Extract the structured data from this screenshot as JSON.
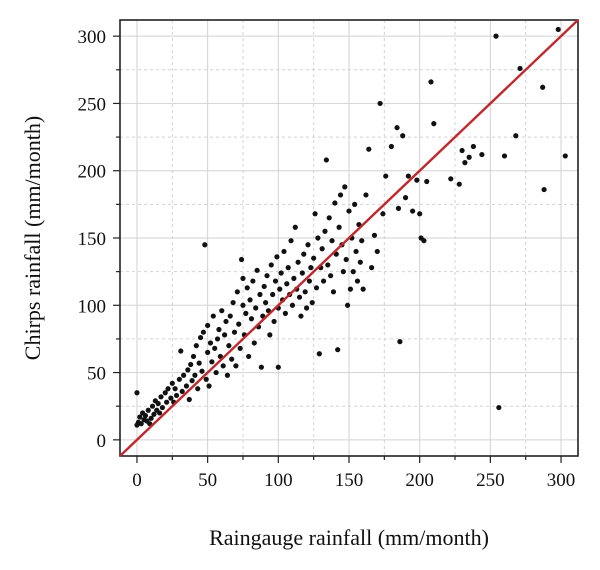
{
  "chart_data": {
    "type": "scatter",
    "title": "",
    "xlabel": "Raingauge rainfall (mm/month)",
    "ylabel": "Chirps rainfall (mm/month)",
    "xlim": [
      -12,
      312
    ],
    "ylim": [
      -12,
      312
    ],
    "xticks": [
      0,
      50,
      100,
      150,
      200,
      250,
      300
    ],
    "yticks": [
      0,
      50,
      100,
      150,
      200,
      250,
      300
    ],
    "grid": true,
    "point_color": "#111111",
    "line_color": "#c0282d",
    "fit_line": {
      "from": [
        -12,
        -12
      ],
      "to": [
        312,
        312
      ]
    },
    "points": [
      [
        0,
        35
      ],
      [
        0,
        11
      ],
      [
        1,
        13
      ],
      [
        2,
        17
      ],
      [
        3,
        12
      ],
      [
        4,
        20
      ],
      [
        5,
        15
      ],
      [
        6,
        18
      ],
      [
        7,
        14
      ],
      [
        8,
        22
      ],
      [
        9,
        12
      ],
      [
        10,
        16
      ],
      [
        11,
        25
      ],
      [
        12,
        19
      ],
      [
        13,
        29
      ],
      [
        14,
        22
      ],
      [
        15,
        27
      ],
      [
        16,
        20
      ],
      [
        17,
        32
      ],
      [
        18,
        24
      ],
      [
        20,
        35
      ],
      [
        21,
        28
      ],
      [
        22,
        38
      ],
      [
        24,
        31
      ],
      [
        25,
        42
      ],
      [
        26,
        28
      ],
      [
        27,
        38
      ],
      [
        28,
        33
      ],
      [
        30,
        45
      ],
      [
        31,
        66
      ],
      [
        32,
        36
      ],
      [
        33,
        48
      ],
      [
        35,
        40
      ],
      [
        36,
        52
      ],
      [
        37,
        30
      ],
      [
        38,
        56
      ],
      [
        39,
        44
      ],
      [
        40,
        62
      ],
      [
        41,
        48
      ],
      [
        42,
        70
      ],
      [
        43,
        38
      ],
      [
        44,
        57
      ],
      [
        45,
        76
      ],
      [
        46,
        51
      ],
      [
        47,
        80
      ],
      [
        48,
        145
      ],
      [
        49,
        45
      ],
      [
        50,
        65
      ],
      [
        50,
        85
      ],
      [
        51,
        40
      ],
      [
        52,
        72
      ],
      [
        53,
        58
      ],
      [
        54,
        92
      ],
      [
        55,
        68
      ],
      [
        56,
        50
      ],
      [
        57,
        75
      ],
      [
        58,
        82
      ],
      [
        59,
        62
      ],
      [
        60,
        96
      ],
      [
        61,
        55
      ],
      [
        62,
        78
      ],
      [
        63,
        88
      ],
      [
        64,
        48
      ],
      [
        65,
        70
      ],
      [
        66,
        92
      ],
      [
        67,
        60
      ],
      [
        68,
        102
      ],
      [
        69,
        80
      ],
      [
        70,
        55
      ],
      [
        71,
        110
      ],
      [
        72,
        86
      ],
      [
        73,
        68
      ],
      [
        74,
        134
      ],
      [
        75,
        100
      ],
      [
        75,
        120
      ],
      [
        76,
        78
      ],
      [
        77,
        94
      ],
      [
        78,
        113
      ],
      [
        79,
        62
      ],
      [
        80,
        104
      ],
      [
        81,
        90
      ],
      [
        82,
        118
      ],
      [
        83,
        72
      ],
      [
        84,
        98
      ],
      [
        85,
        126
      ],
      [
        86,
        84
      ],
      [
        87,
        108
      ],
      [
        88,
        54
      ],
      [
        89,
        92
      ],
      [
        90,
        114
      ],
      [
        91,
        102
      ],
      [
        92,
        122
      ],
      [
        93,
        96
      ],
      [
        94,
        78
      ],
      [
        95,
        130
      ],
      [
        96,
        108
      ],
      [
        97,
        88
      ],
      [
        98,
        118
      ],
      [
        99,
        136
      ],
      [
        100,
        54
      ],
      [
        100,
        98
      ],
      [
        101,
        112
      ],
      [
        102,
        124
      ],
      [
        103,
        104
      ],
      [
        104,
        140
      ],
      [
        105,
        94
      ],
      [
        106,
        116
      ],
      [
        107,
        128
      ],
      [
        108,
        108
      ],
      [
        109,
        148
      ],
      [
        110,
        100
      ],
      [
        111,
        120
      ],
      [
        112,
        158
      ],
      [
        113,
        112
      ],
      [
        114,
        132
      ],
      [
        115,
        106
      ],
      [
        116,
        92
      ],
      [
        117,
        124
      ],
      [
        118,
        138
      ],
      [
        119,
        110
      ],
      [
        120,
        98
      ],
      [
        121,
        145
      ],
      [
        122,
        118
      ],
      [
        123,
        128
      ],
      [
        124,
        102
      ],
      [
        125,
        135
      ],
      [
        126,
        168
      ],
      [
        127,
        113
      ],
      [
        128,
        150
      ],
      [
        129,
        64
      ],
      [
        130,
        128
      ],
      [
        131,
        142
      ],
      [
        132,
        118
      ],
      [
        133,
        155
      ],
      [
        134,
        208
      ],
      [
        135,
        130
      ],
      [
        136,
        165
      ],
      [
        137,
        122
      ],
      [
        138,
        148
      ],
      [
        139,
        110
      ],
      [
        140,
        176
      ],
      [
        141,
        138
      ],
      [
        142,
        67
      ],
      [
        143,
        158
      ],
      [
        144,
        182
      ],
      [
        145,
        145
      ],
      [
        146,
        125
      ],
      [
        147,
        188
      ],
      [
        148,
        134
      ],
      [
        149,
        100
      ],
      [
        150,
        170
      ],
      [
        151,
        112
      ],
      [
        152,
        150
      ],
      [
        153,
        125
      ],
      [
        154,
        175
      ],
      [
        155,
        140
      ],
      [
        156,
        118
      ],
      [
        157,
        160
      ],
      [
        158,
        132
      ],
      [
        159,
        148
      ],
      [
        160,
        112
      ],
      [
        162,
        182
      ],
      [
        164,
        216
      ],
      [
        166,
        128
      ],
      [
        168,
        152
      ],
      [
        170,
        140
      ],
      [
        172,
        250
      ],
      [
        174,
        168
      ],
      [
        176,
        196
      ],
      [
        180,
        218
      ],
      [
        184,
        232
      ],
      [
        185,
        172
      ],
      [
        186,
        73
      ],
      [
        188,
        226
      ],
      [
        190,
        180
      ],
      [
        192,
        196
      ],
      [
        195,
        170
      ],
      [
        198,
        193
      ],
      [
        200,
        168
      ],
      [
        201,
        150
      ],
      [
        203,
        148
      ],
      [
        205,
        192
      ],
      [
        208,
        266
      ],
      [
        210,
        235
      ],
      [
        222,
        194
      ],
      [
        228,
        190
      ],
      [
        230,
        215
      ],
      [
        232,
        206
      ],
      [
        235,
        210
      ],
      [
        238,
        218
      ],
      [
        244,
        212
      ],
      [
        254,
        300
      ],
      [
        256,
        24
      ],
      [
        260,
        211
      ],
      [
        268,
        226
      ],
      [
        271,
        276
      ],
      [
        287,
        262
      ],
      [
        288,
        186
      ],
      [
        298,
        305
      ],
      [
        303,
        211
      ]
    ]
  }
}
